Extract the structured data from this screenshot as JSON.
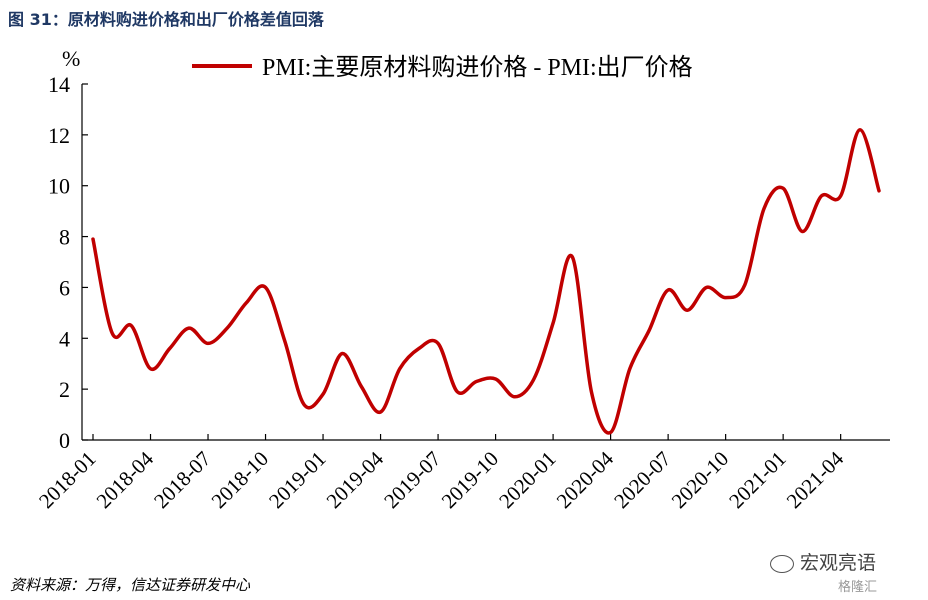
{
  "figure_title": "图 31：原材料购进价格和出厂价格差值回落",
  "source_text": "资料来源：万得，信达证券研发中心",
  "watermark": {
    "text": "宏观亮语",
    "subtext": "格隆汇"
  },
  "chart_data": {
    "type": "line",
    "ylabel": "%",
    "ylim": [
      0,
      14
    ],
    "yticks": [
      0,
      2,
      4,
      6,
      8,
      10,
      12,
      14
    ],
    "xtick_labels": [
      "2018-01",
      "2018-04",
      "2018-07",
      "2018-10",
      "2019-01",
      "2019-04",
      "2019-07",
      "2019-10",
      "2020-01",
      "2020-04",
      "2020-07",
      "2020-10",
      "2021-01",
      "2021-04"
    ],
    "grid": false,
    "legend_position": "top-center",
    "series_color": "#c00000",
    "series": [
      {
        "name": "PMI:主要原材料购进价格 - PMI:出厂价格",
        "x": [
          "2018-01",
          "2018-02",
          "2018-03",
          "2018-04",
          "2018-05",
          "2018-06",
          "2018-07",
          "2018-08",
          "2018-09",
          "2018-10",
          "2018-11",
          "2018-12",
          "2019-01",
          "2019-02",
          "2019-03",
          "2019-04",
          "2019-05",
          "2019-06",
          "2019-07",
          "2019-08",
          "2019-09",
          "2019-10",
          "2019-11",
          "2019-12",
          "2020-01",
          "2020-02",
          "2020-03",
          "2020-04",
          "2020-05",
          "2020-06",
          "2020-07",
          "2020-08",
          "2020-09",
          "2020-10",
          "2020-11",
          "2020-12",
          "2021-01",
          "2021-02",
          "2021-03",
          "2021-04",
          "2021-05",
          "2021-06"
        ],
        "values": [
          7.9,
          4.2,
          4.5,
          2.8,
          3.6,
          4.4,
          3.8,
          4.4,
          5.4,
          6.0,
          3.9,
          1.4,
          1.8,
          3.4,
          2.1,
          1.1,
          2.8,
          3.6,
          3.8,
          1.9,
          2.3,
          2.4,
          1.7,
          2.4,
          4.6,
          7.2,
          1.9,
          0.3,
          2.8,
          4.3,
          5.9,
          5.1,
          6.0,
          5.6,
          6.1,
          9.1,
          9.9,
          8.2,
          9.6,
          9.6,
          12.2,
          9.8
        ]
      }
    ]
  }
}
